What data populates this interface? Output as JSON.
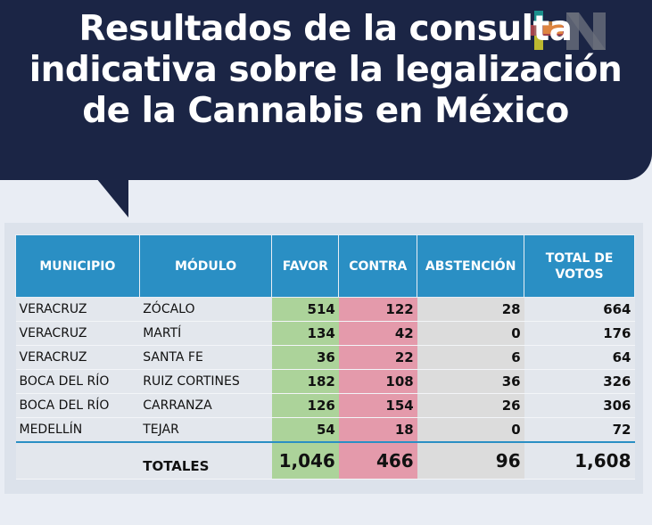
{
  "title": "Resultados de la consulta indicativa sobre la legalización de la Cannabis en México",
  "logo_text": "IN",
  "colors": {
    "banner": "#1b2545",
    "header": "#2a8fc4",
    "favor": "#acd39a",
    "contra": "#e49aab",
    "abstencion": "#dcdcdc"
  },
  "headers": [
    "MUNICIPIO",
    "MÓDULO",
    "FAVOR",
    "CONTRA",
    "ABSTENCIÓN",
    "TOTAL DE VOTOS"
  ],
  "rows": [
    {
      "municipio": "VERACRUZ",
      "modulo": "ZÓCALO",
      "favor": "514",
      "contra": "122",
      "abstencion": "28",
      "total": "664"
    },
    {
      "municipio": "VERACRUZ",
      "modulo": "MARTÍ",
      "favor": "134",
      "contra": "42",
      "abstencion": "0",
      "total": "176"
    },
    {
      "municipio": "VERACRUZ",
      "modulo": "SANTA FE",
      "favor": "36",
      "contra": "22",
      "abstencion": "6",
      "total": "64"
    },
    {
      "municipio": "BOCA DEL RÍO",
      "modulo": "RUIZ CORTINES",
      "favor": "182",
      "contra": "108",
      "abstencion": "36",
      "total": "326"
    },
    {
      "municipio": "BOCA DEL RÍO",
      "modulo": "CARRANZA",
      "favor": "126",
      "contra": "154",
      "abstencion": "26",
      "total": "306"
    },
    {
      "municipio": "MEDELLÍN",
      "modulo": "TEJAR",
      "favor": "54",
      "contra": "18",
      "abstencion": "0",
      "total": "72"
    }
  ],
  "totals": {
    "label": "TOTALES",
    "favor": "1,046",
    "contra": "466",
    "abstencion": "96",
    "total": "1,608"
  }
}
